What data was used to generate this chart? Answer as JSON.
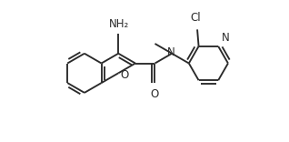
{
  "bg_color": "#ffffff",
  "bond_color": "#2a2a2a",
  "text_color": "#2a2a2a",
  "figsize": [
    3.18,
    1.56
  ],
  "dpi": 100,
  "bond_lw": 1.35,
  "font_size": 8.0,
  "label_NH2": "NH₂",
  "label_O_furan": "O",
  "label_O_carbonyl": "O",
  "label_N_amide": "N",
  "label_Cl": "Cl",
  "label_N_pyr": "N"
}
